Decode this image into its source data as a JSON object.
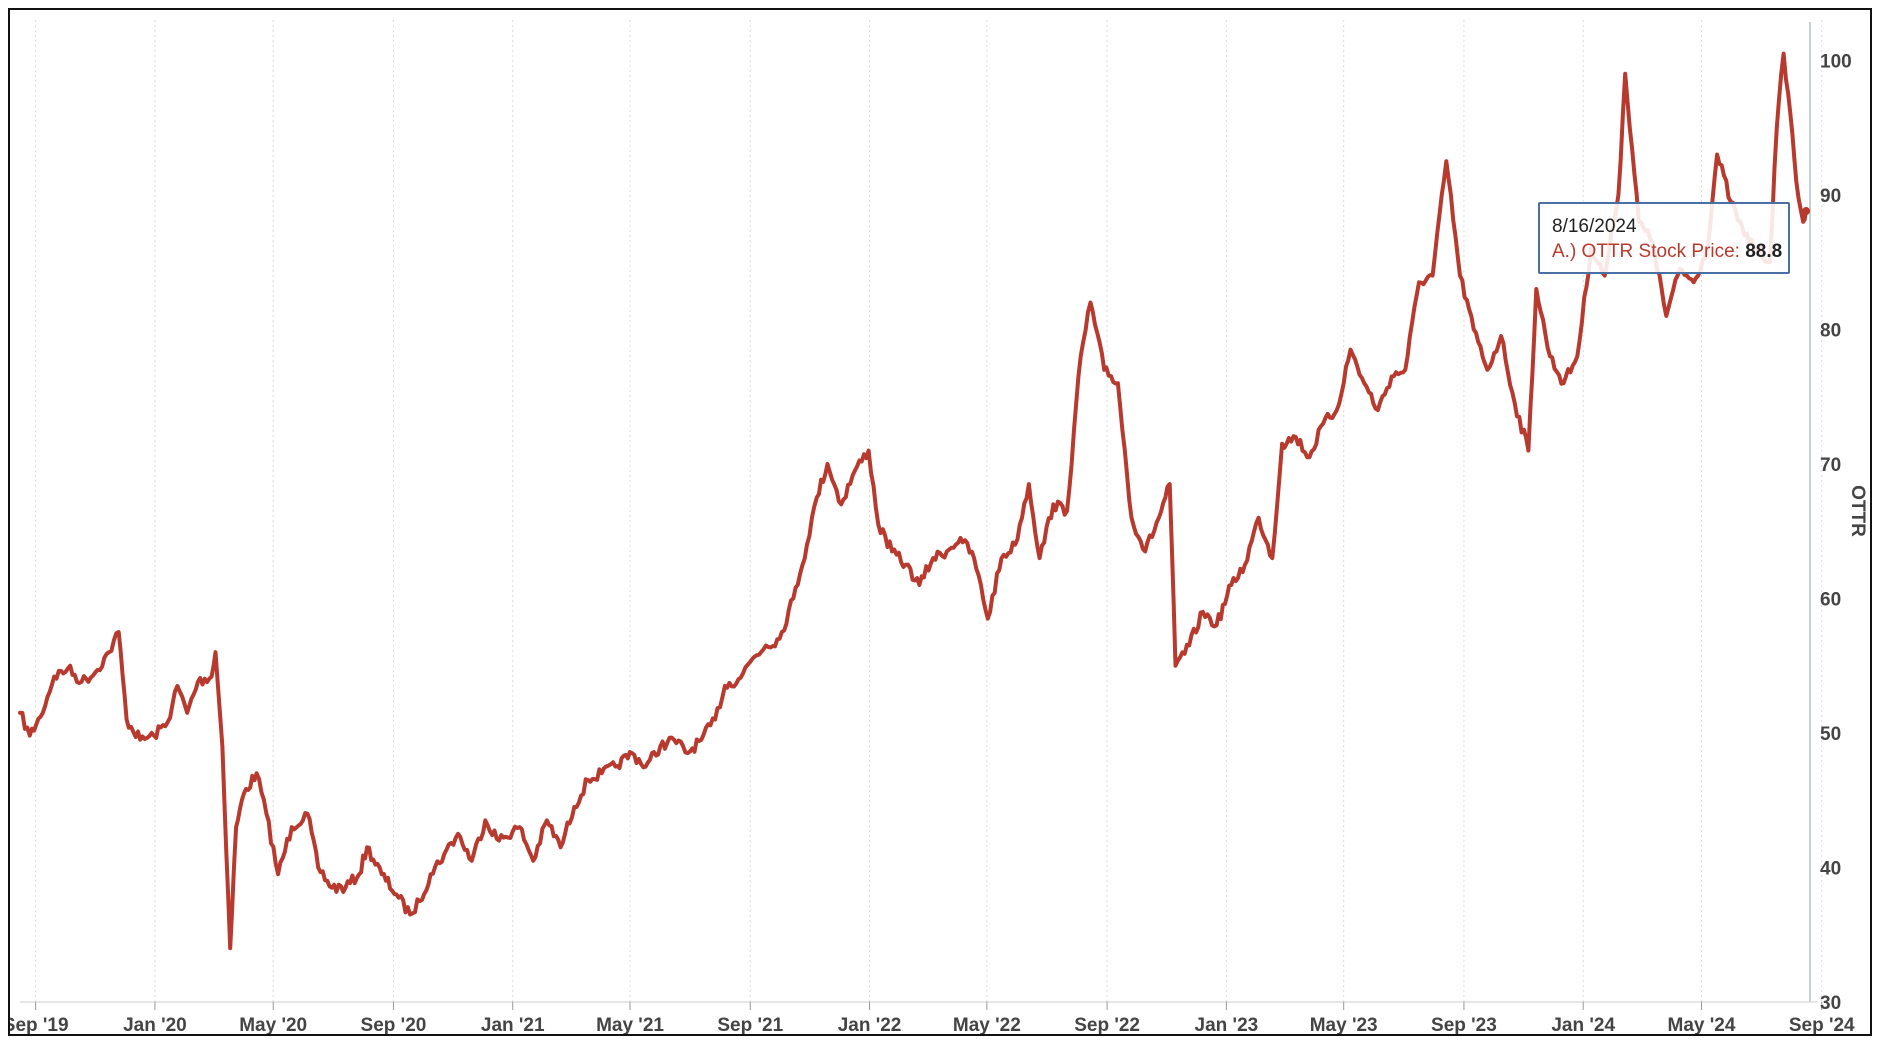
{
  "chart_data": {
    "type": "line",
    "title": "",
    "xlabel": "",
    "ylabel": "OTTR",
    "ylim": [
      30,
      103
    ],
    "yticks": [
      30,
      40,
      50,
      60,
      70,
      80,
      90,
      100
    ],
    "xlim": [
      "2019-08-16",
      "2024-08-20"
    ],
    "xticks": [
      {
        "date": "2019-09-01",
        "label": "Sep '19"
      },
      {
        "date": "2020-01-01",
        "label": "Jan '20"
      },
      {
        "date": "2020-05-01",
        "label": "May '20"
      },
      {
        "date": "2020-09-01",
        "label": "Sep '20"
      },
      {
        "date": "2021-01-01",
        "label": "Jan '21"
      },
      {
        "date": "2021-05-01",
        "label": "May '21"
      },
      {
        "date": "2021-09-01",
        "label": "Sep '21"
      },
      {
        "date": "2022-01-01",
        "label": "Jan '22"
      },
      {
        "date": "2022-05-01",
        "label": "May '22"
      },
      {
        "date": "2022-09-01",
        "label": "Sep '22"
      },
      {
        "date": "2023-01-01",
        "label": "Jan '23"
      },
      {
        "date": "2023-05-01",
        "label": "May '23"
      },
      {
        "date": "2023-09-01",
        "label": "Sep '23"
      },
      {
        "date": "2024-01-01",
        "label": "Jan '24"
      },
      {
        "date": "2024-05-01",
        "label": "May '24"
      },
      {
        "date": "2024-09-01",
        "label": "Sep '24"
      }
    ],
    "grid": {
      "vertical_dotted": true,
      "horizontal": false
    },
    "legend": "none",
    "series": [
      {
        "name": "A.) OTTR Stock Price",
        "color": "#b83a2e",
        "points": [
          [
            "2019-08-16",
            51.5
          ],
          [
            "2019-08-26",
            49.8
          ],
          [
            "2019-09-06",
            51.2
          ],
          [
            "2019-09-20",
            54.2
          ],
          [
            "2019-10-04",
            54.8
          ],
          [
            "2019-10-18",
            53.8
          ],
          [
            "2019-11-01",
            54.5
          ],
          [
            "2019-11-15",
            56.0
          ],
          [
            "2019-11-25",
            57.5
          ],
          [
            "2019-12-03",
            51.0
          ],
          [
            "2019-12-17",
            49.5
          ],
          [
            "2019-12-31",
            49.8
          ],
          [
            "2020-01-14",
            50.8
          ],
          [
            "2020-01-24",
            53.5
          ],
          [
            "2020-02-03",
            51.5
          ],
          [
            "2020-02-14",
            53.8
          ],
          [
            "2020-02-28",
            54.2
          ],
          [
            "2020-03-03",
            56.0
          ],
          [
            "2020-03-10",
            49.0
          ],
          [
            "2020-03-18",
            34.0
          ],
          [
            "2020-03-24",
            43.0
          ],
          [
            "2020-04-01",
            45.5
          ],
          [
            "2020-04-14",
            47.0
          ],
          [
            "2020-04-24",
            44.0
          ],
          [
            "2020-05-06",
            39.5
          ],
          [
            "2020-05-20",
            43.0
          ],
          [
            "2020-06-05",
            44.0
          ],
          [
            "2020-06-16",
            40.0
          ],
          [
            "2020-06-30",
            38.5
          ],
          [
            "2020-07-14",
            38.5
          ],
          [
            "2020-07-28",
            39.5
          ],
          [
            "2020-08-05",
            41.5
          ],
          [
            "2020-08-20",
            39.5
          ],
          [
            "2020-09-04",
            38.0
          ],
          [
            "2020-09-18",
            36.5
          ],
          [
            "2020-09-28",
            37.5
          ],
          [
            "2020-10-09",
            39.5
          ],
          [
            "2020-10-23",
            41.0
          ],
          [
            "2020-11-06",
            42.5
          ],
          [
            "2020-11-20",
            40.5
          ],
          [
            "2020-12-04",
            43.5
          ],
          [
            "2020-12-18",
            42.0
          ],
          [
            "2021-01-08",
            43.0
          ],
          [
            "2021-01-22",
            40.5
          ],
          [
            "2021-02-05",
            43.5
          ],
          [
            "2021-02-19",
            41.5
          ],
          [
            "2021-03-05",
            44.5
          ],
          [
            "2021-03-19",
            46.5
          ],
          [
            "2021-04-02",
            47.0
          ],
          [
            "2021-04-16",
            47.5
          ],
          [
            "2021-05-03",
            48.5
          ],
          [
            "2021-05-17",
            47.5
          ],
          [
            "2021-06-01",
            49.0
          ],
          [
            "2021-06-15",
            49.5
          ],
          [
            "2021-06-29",
            48.5
          ],
          [
            "2021-07-13",
            49.5
          ],
          [
            "2021-07-27",
            51.0
          ],
          [
            "2021-08-06",
            53.5
          ],
          [
            "2021-08-20",
            54.0
          ],
          [
            "2021-09-03",
            55.5
          ],
          [
            "2021-09-17",
            56.5
          ],
          [
            "2021-10-01",
            57.0
          ],
          [
            "2021-10-15",
            60.0
          ],
          [
            "2021-10-29",
            64.0
          ],
          [
            "2021-11-08",
            67.5
          ],
          [
            "2021-11-19",
            70.0
          ],
          [
            "2021-12-03",
            67.0
          ],
          [
            "2021-12-17",
            69.5
          ],
          [
            "2021-12-31",
            71.0
          ],
          [
            "2022-01-10",
            65.5
          ],
          [
            "2022-01-24",
            63.5
          ],
          [
            "2022-02-07",
            62.5
          ],
          [
            "2022-02-21",
            61.0
          ],
          [
            "2022-03-07",
            63.0
          ],
          [
            "2022-03-21",
            63.5
          ],
          [
            "2022-04-04",
            64.5
          ],
          [
            "2022-04-18",
            63.0
          ],
          [
            "2022-05-02",
            58.5
          ],
          [
            "2022-05-16",
            63.0
          ],
          [
            "2022-05-30",
            64.0
          ],
          [
            "2022-06-13",
            68.5
          ],
          [
            "2022-06-24",
            63.0
          ],
          [
            "2022-07-08",
            67.0
          ],
          [
            "2022-07-22",
            66.5
          ],
          [
            "2022-08-05",
            78.0
          ],
          [
            "2022-08-15",
            82.0
          ],
          [
            "2022-08-29",
            77.0
          ],
          [
            "2022-09-12",
            76.0
          ],
          [
            "2022-09-26",
            66.0
          ],
          [
            "2022-10-10",
            63.5
          ],
          [
            "2022-10-24",
            66.0
          ],
          [
            "2022-11-04",
            68.5
          ],
          [
            "2022-11-10",
            55.0
          ],
          [
            "2022-11-24",
            56.5
          ],
          [
            "2022-12-08",
            59.0
          ],
          [
            "2022-12-22",
            58.0
          ],
          [
            "2023-01-06",
            61.0
          ],
          [
            "2023-01-20",
            62.5
          ],
          [
            "2023-02-03",
            66.0
          ],
          [
            "2023-02-17",
            63.0
          ],
          [
            "2023-02-27",
            71.5
          ],
          [
            "2023-03-13",
            72.0
          ],
          [
            "2023-03-27",
            70.5
          ],
          [
            "2023-04-10",
            73.0
          ],
          [
            "2023-04-24",
            74.0
          ],
          [
            "2023-05-08",
            78.5
          ],
          [
            "2023-05-22",
            76.0
          ],
          [
            "2023-06-05",
            74.0
          ],
          [
            "2023-06-19",
            76.5
          ],
          [
            "2023-07-03",
            77.0
          ],
          [
            "2023-07-17",
            83.5
          ],
          [
            "2023-07-31",
            84.0
          ],
          [
            "2023-08-14",
            92.5
          ],
          [
            "2023-08-28",
            84.0
          ],
          [
            "2023-09-11",
            80.0
          ],
          [
            "2023-09-25",
            77.0
          ],
          [
            "2023-10-09",
            79.5
          ],
          [
            "2023-10-23",
            74.5
          ],
          [
            "2023-11-06",
            71.0
          ],
          [
            "2023-11-14",
            83.0
          ],
          [
            "2023-11-28",
            78.0
          ],
          [
            "2023-12-12",
            76.0
          ],
          [
            "2023-12-26",
            78.0
          ],
          [
            "2024-01-09",
            86.0
          ],
          [
            "2024-01-23",
            84.0
          ],
          [
            "2024-02-06",
            90.0
          ],
          [
            "2024-02-13",
            99.0
          ],
          [
            "2024-02-27",
            88.0
          ],
          [
            "2024-03-12",
            86.5
          ],
          [
            "2024-03-26",
            81.0
          ],
          [
            "2024-04-09",
            84.5
          ],
          [
            "2024-04-23",
            83.5
          ],
          [
            "2024-05-07",
            86.0
          ],
          [
            "2024-05-17",
            93.0
          ],
          [
            "2024-05-31",
            89.5
          ],
          [
            "2024-06-14",
            87.0
          ],
          [
            "2024-06-28",
            86.0
          ],
          [
            "2024-07-10",
            85.0
          ],
          [
            "2024-07-17",
            95.0
          ],
          [
            "2024-07-24",
            100.5
          ],
          [
            "2024-07-31",
            96.0
          ],
          [
            "2024-08-06",
            91.0
          ],
          [
            "2024-08-13",
            88.0
          ],
          [
            "2024-08-16",
            88.8
          ]
        ]
      }
    ],
    "tooltip": {
      "date": "8/16/2024",
      "series_label": "A.) OTTR Stock Price:",
      "value": "88.8"
    }
  }
}
